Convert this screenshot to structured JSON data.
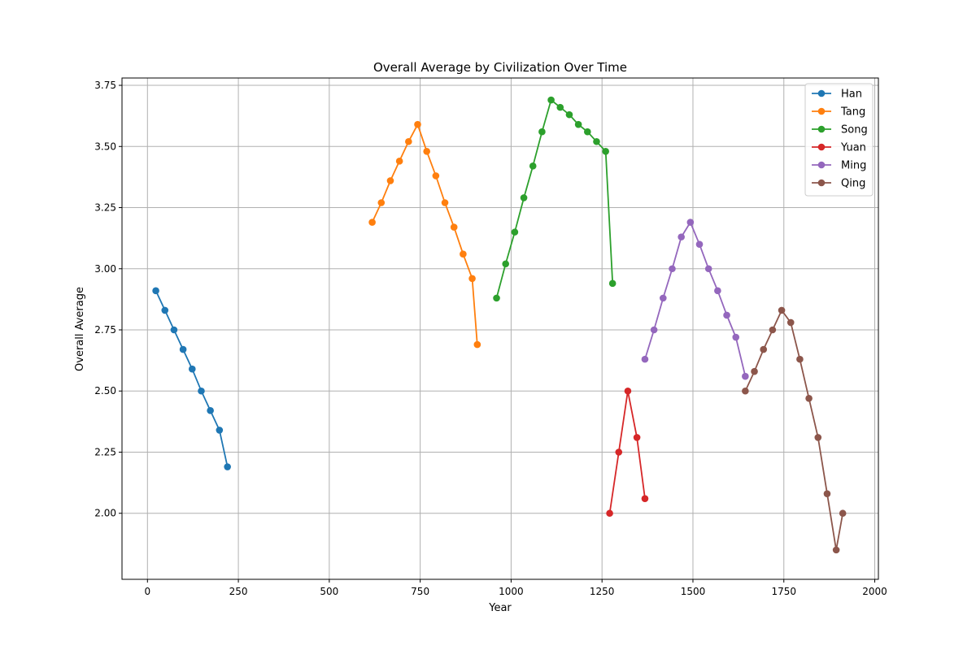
{
  "chart_data": {
    "type": "line",
    "title": "Overall Average by Civilization Over Time",
    "xlabel": "Year",
    "ylabel": "Overall Average",
    "xlim": [
      -70,
      2010
    ],
    "ylim": [
      1.73,
      3.78
    ],
    "xticks": [
      0,
      250,
      500,
      750,
      1000,
      1250,
      1500,
      1750,
      2000
    ],
    "yticks": [
      2.0,
      2.25,
      2.5,
      2.75,
      3.0,
      3.25,
      3.5,
      3.75
    ],
    "grid": true,
    "legend_position": "top-right",
    "markers": true,
    "series": [
      {
        "name": "Han",
        "color": "#1f77b4",
        "x": [
          23,
          48,
          73,
          98,
          123,
          148,
          173,
          198,
          220
        ],
        "y": [
          2.91,
          2.83,
          2.75,
          2.67,
          2.59,
          2.5,
          2.42,
          2.34,
          2.19
        ]
      },
      {
        "name": "Tang",
        "color": "#ff7f0e",
        "x": [
          618,
          643,
          668,
          693,
          718,
          743,
          768,
          793,
          818,
          843,
          868,
          893,
          907
        ],
        "y": [
          3.19,
          3.27,
          3.36,
          3.44,
          3.52,
          3.59,
          3.48,
          3.38,
          3.27,
          3.17,
          3.06,
          2.96,
          2.69
        ]
      },
      {
        "name": "Song",
        "color": "#2ca02c",
        "x": [
          960,
          985,
          1010,
          1035,
          1060,
          1085,
          1110,
          1135,
          1160,
          1185,
          1210,
          1235,
          1260,
          1279
        ],
        "y": [
          2.88,
          3.02,
          3.15,
          3.29,
          3.42,
          3.56,
          3.69,
          3.66,
          3.63,
          3.59,
          3.56,
          3.52,
          3.48,
          2.94
        ]
      },
      {
        "name": "Yuan",
        "color": "#d62728",
        "x": [
          1271,
          1296,
          1321,
          1346,
          1368
        ],
        "y": [
          2.0,
          2.25,
          2.5,
          2.31,
          2.06
        ]
      },
      {
        "name": "Ming",
        "color": "#9467bd",
        "x": [
          1368,
          1393,
          1418,
          1443,
          1468,
          1493,
          1518,
          1543,
          1568,
          1593,
          1618,
          1644
        ],
        "y": [
          2.63,
          2.75,
          2.88,
          3.0,
          3.13,
          3.19,
          3.1,
          3.0,
          2.91,
          2.81,
          2.72,
          2.56
        ]
      },
      {
        "name": "Qing",
        "color": "#8c564b",
        "x": [
          1644,
          1669,
          1694,
          1719,
          1744,
          1769,
          1794,
          1819,
          1844,
          1869,
          1894,
          1912
        ],
        "y": [
          2.5,
          2.58,
          2.67,
          2.75,
          2.83,
          2.78,
          2.63,
          2.47,
          2.31,
          2.08,
          1.85,
          2.0
        ]
      }
    ]
  }
}
